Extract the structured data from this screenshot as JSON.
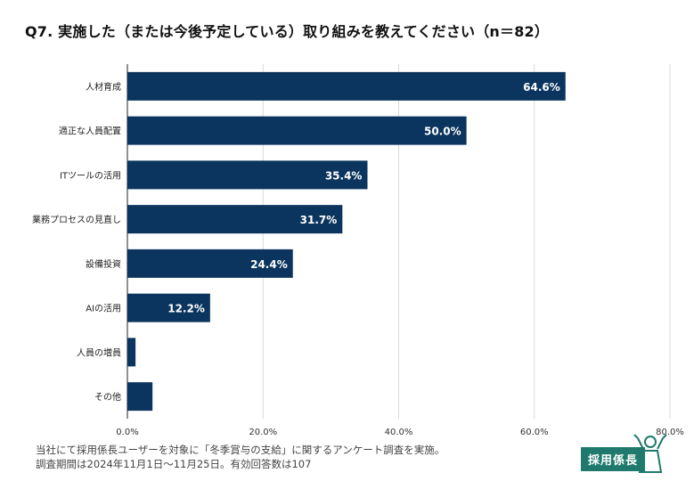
{
  "chart_data": {
    "type": "bar",
    "orientation": "horizontal",
    "title": "Q7. 実施した（または今後予定している）取り組みを教えてください（n＝82）",
    "categories": [
      "人材育成",
      "適正な人員配置",
      "ITツールの活用",
      "業務プロセスの見直し",
      "設備投資",
      "AIの活用",
      "人員の増員",
      "その他"
    ],
    "values": [
      64.6,
      50.0,
      35.4,
      31.7,
      24.4,
      12.2,
      1.2,
      3.7
    ],
    "data_labels": [
      "64.6%",
      "50.0%",
      "35.4%",
      "31.7%",
      "24.4%",
      "12.2%",
      "",
      ""
    ],
    "xlim": [
      0,
      80
    ],
    "xticks": [
      0,
      20,
      40,
      60,
      80
    ],
    "xtick_labels": [
      "0.0%",
      "20.0%",
      "40.0%",
      "60.0%",
      "80.0%"
    ],
    "grid": true,
    "bar_color": "#0b355e",
    "xlabel": "",
    "ylabel": ""
  },
  "footer": {
    "line1": "当社にて採用係長ユーザーを対象に「冬季賞与の支給」に関するアンケート調査を実施。",
    "line2": "調査期間は2024年11月1日〜11月25日。有効回答数は107"
  },
  "logo": {
    "text": "採用係長",
    "color": "#1f7a6d"
  }
}
